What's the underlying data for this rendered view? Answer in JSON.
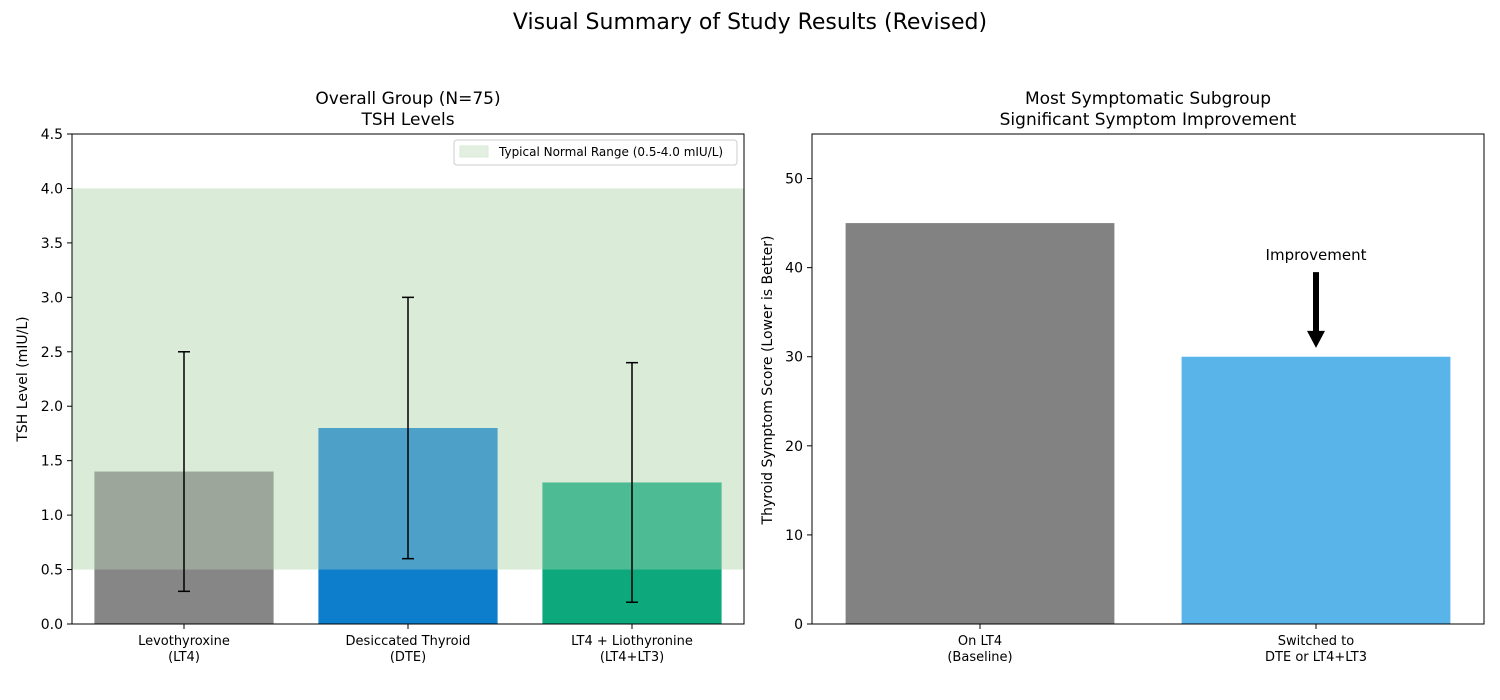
{
  "suptitle": "Visual Summary of Study Results (Revised)",
  "chart_data": [
    {
      "type": "bar",
      "title_lines": [
        "Overall Group (N=75)",
        "TSH Levels"
      ],
      "categories": [
        [
          "Levothyroxine",
          "(LT4)"
        ],
        [
          "Desiccated Thyroid",
          "(DTE)"
        ],
        [
          "LT4 + Liothyronine",
          "(LT4+LT3)"
        ]
      ],
      "values": [
        1.4,
        1.8,
        1.3
      ],
      "error_low": [
        0.3,
        0.6,
        0.2
      ],
      "error_high": [
        2.5,
        3.0,
        2.4
      ],
      "colors": [
        "#808080",
        "#0077C8",
        "#00A375"
      ],
      "ylabel": "TSH Level (mIU/L)",
      "ylim": [
        0,
        4.5
      ],
      "yticks": [
        "0.0",
        "0.5",
        "1.0",
        "1.5",
        "2.0",
        "2.5",
        "3.0",
        "3.5",
        "4.0",
        "4.5"
      ],
      "normal_range": [
        0.5,
        4.0
      ],
      "normal_range_color": "#C8E3C5",
      "legend": "Typical Normal Range (0.5-4.0 mIU/L)",
      "legend_position": "top-right"
    },
    {
      "type": "bar",
      "title_lines": [
        "Most Symptomatic Subgroup",
        "Significant Symptom Improvement"
      ],
      "categories": [
        [
          "On LT4",
          "(Baseline)"
        ],
        [
          "Switched to",
          "DTE or LT4+LT3"
        ]
      ],
      "values": [
        45,
        30
      ],
      "colors": [
        "#808080",
        "#56B4E9"
      ],
      "ylabel": "Thyroid Symptom Score (Lower is Better)",
      "ylim": [
        0,
        55
      ],
      "yticks": [
        "0",
        "10",
        "20",
        "30",
        "40",
        "50"
      ],
      "annotation": {
        "text": "Improvement",
        "arrow_from": 39.5,
        "arrow_to": 31
      }
    }
  ]
}
